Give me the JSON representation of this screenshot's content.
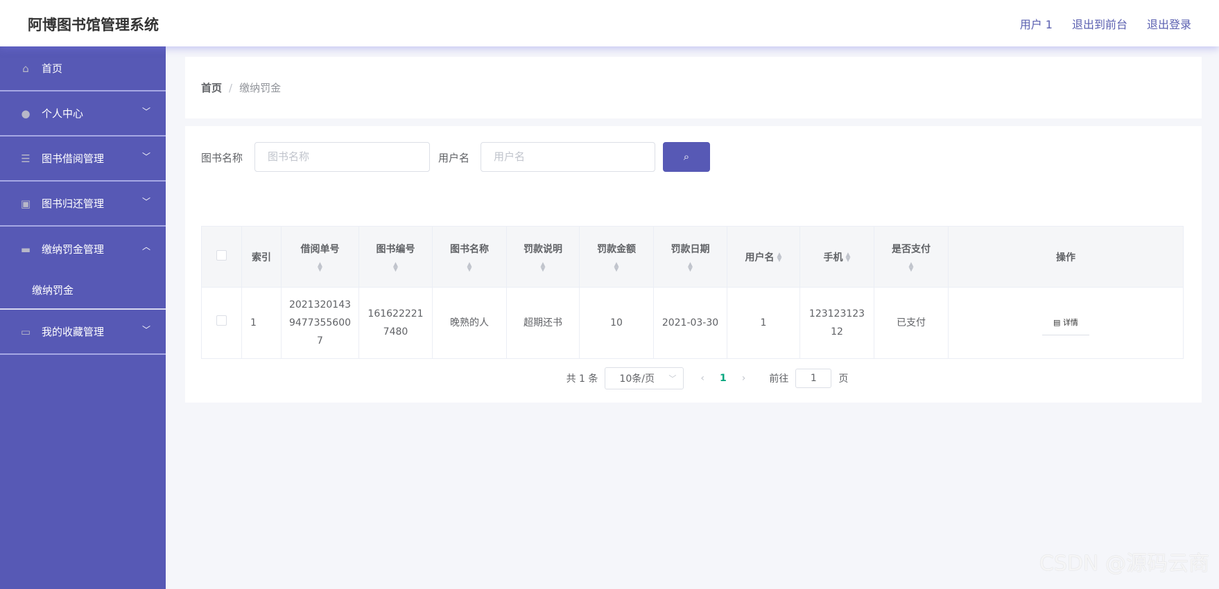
{
  "header": {
    "title": "阿博图书馆管理系统",
    "links": [
      "用户 1",
      "退出到前台",
      "退出登录"
    ]
  },
  "sidebar": {
    "items": [
      {
        "label": "首页",
        "icon": "home-icon"
      },
      {
        "label": "个人中心",
        "icon": "user-icon"
      },
      {
        "label": "图书借阅管理",
        "icon": "list-icon"
      },
      {
        "label": "图书归还管理",
        "icon": "clipboard-icon"
      },
      {
        "label": "缴纳罚金管理",
        "icon": "monitor-icon",
        "expanded": true,
        "children": [
          "缴纳罚金"
        ]
      },
      {
        "label": "我的收藏管理",
        "icon": "chat-icon"
      }
    ]
  },
  "breadcrumb": {
    "home": "首页",
    "sep": "/",
    "current": "缴纳罚金"
  },
  "search": {
    "book_label": "图书名称",
    "book_placeholder": "图书名称",
    "user_label": "用户名",
    "user_placeholder": "用户名"
  },
  "table": {
    "headers": [
      "索引",
      "借阅单号",
      "图书编号",
      "图书名称",
      "罚款说明",
      "罚款金额",
      "罚款日期",
      "用户名",
      "手机",
      "是否支付",
      "操作"
    ],
    "rows": [
      {
        "index": "1",
        "borrow_no": "20213201439477355600 7",
        "book_no": "1616222217480",
        "book_name": "晚熟的人",
        "desc": "超期还书",
        "amount": "10",
        "date": "2021-03-30",
        "username": "1",
        "phone": "12312312312",
        "paid": "已支付",
        "action": "详情"
      }
    ]
  },
  "pagination": {
    "total": "共 1 条",
    "page_size": "10条/页",
    "current": "1",
    "goto_label": "前往",
    "goto_value": "1",
    "page_suffix": "页"
  },
  "watermark": "CSDN @源码云商",
  "colors": {
    "accent": "#5759b5",
    "active_page": "#00a67e"
  }
}
